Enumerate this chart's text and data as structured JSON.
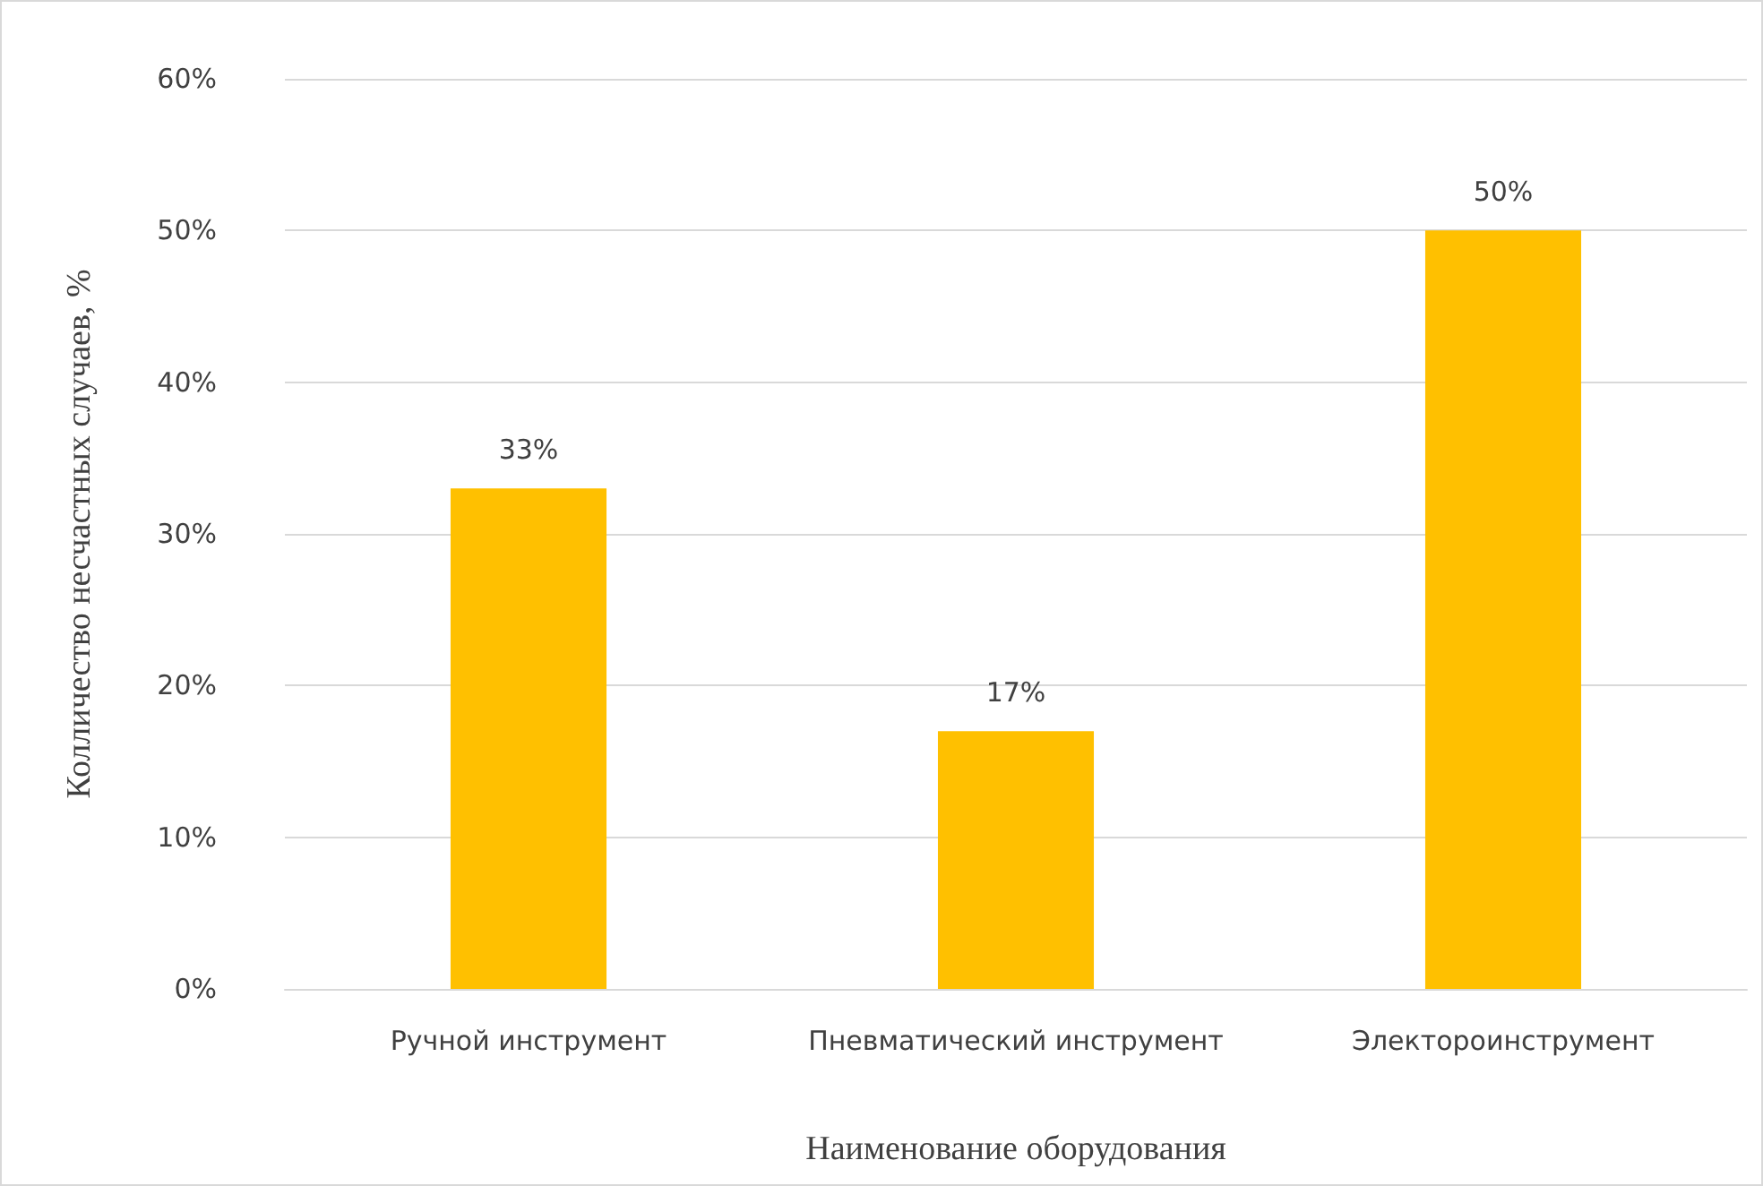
{
  "chart_data": {
    "type": "bar",
    "xlabel": "Наименование оборудования",
    "ylabel": "Колличество несчастных случаев, %",
    "categories": [
      "Ручной инструмент",
      "Пневматический инструмент",
      "Электороинструмент"
    ],
    "values": [
      33,
      17,
      50
    ],
    "value_labels": [
      "33%",
      "17%",
      "50%"
    ],
    "color": "#ffc000",
    "ylim": [
      0,
      60
    ],
    "yticks": [
      {
        "value": 0,
        "label": "0%"
      },
      {
        "value": 10,
        "label": "10%"
      },
      {
        "value": 20,
        "label": "20%"
      },
      {
        "value": 30,
        "label": "30%"
      },
      {
        "value": 40,
        "label": "40%"
      },
      {
        "value": 50,
        "label": "50%"
      },
      {
        "value": 60,
        "label": "60%"
      }
    ],
    "grid": "y"
  }
}
